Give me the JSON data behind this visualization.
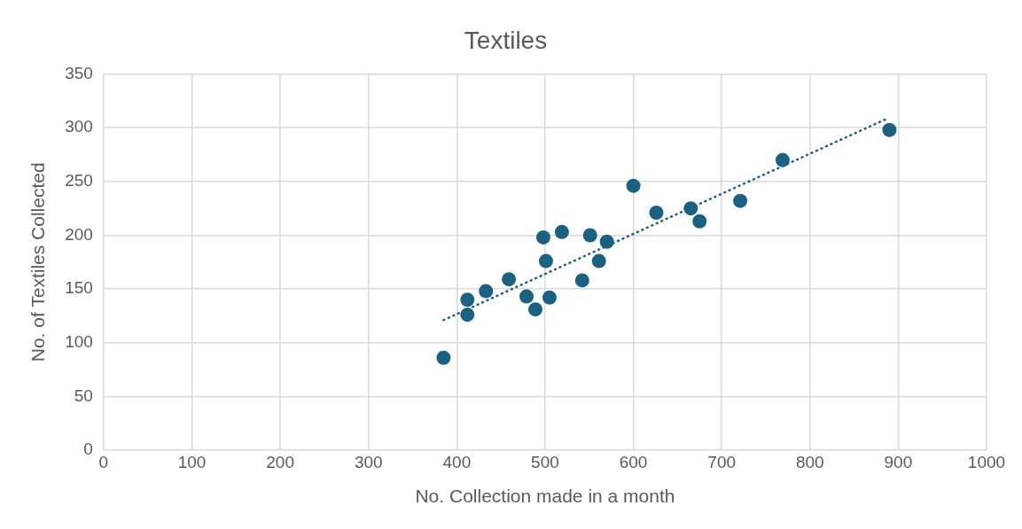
{
  "chart_data": {
    "type": "scatter",
    "title": "Textiles",
    "xlabel": "No. Collection made in a month",
    "ylabel": "No. of Textiles Collected",
    "xlim": [
      0,
      1000
    ],
    "xticks": [
      0,
      100,
      200,
      300,
      400,
      500,
      600,
      700,
      800,
      900,
      1000
    ],
    "ylim": [
      0,
      350
    ],
    "yticks": [
      0,
      50,
      100,
      150,
      200,
      250,
      300,
      350
    ],
    "grid": true,
    "legend": false,
    "marker": "circle",
    "series": [
      {
        "type": "scatter",
        "color": "#1a6182",
        "x": [
          385,
          412,
          412,
          433,
          459,
          479,
          489,
          505,
          498,
          501,
          519,
          542,
          551,
          561,
          570,
          600,
          626,
          665,
          675,
          721,
          769,
          890
        ],
        "values": [
          86,
          140,
          126,
          148,
          159,
          143,
          131,
          142,
          198,
          176,
          203,
          158,
          200,
          176,
          194,
          246,
          221,
          225,
          213,
          232,
          270,
          298
        ]
      },
      {
        "type": "line",
        "color": "#1a6182",
        "line_style": "dotted",
        "marker": "none",
        "x": [
          385,
          886
        ],
        "values": [
          121,
          308
        ]
      }
    ]
  }
}
